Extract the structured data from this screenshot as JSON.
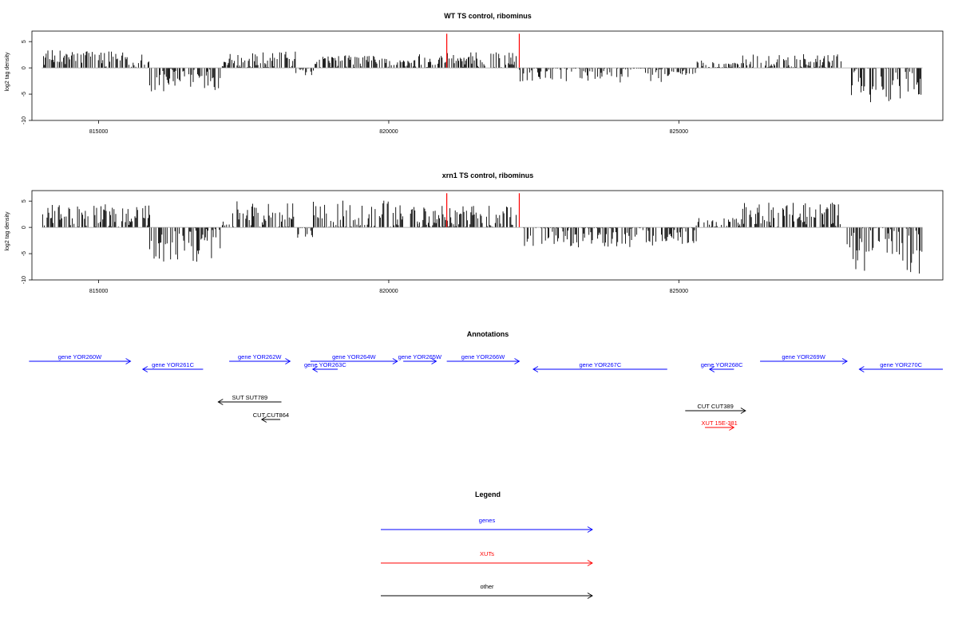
{
  "chart_data": [
    {
      "type": "bar",
      "title": "WT TS control, ribominus",
      "ylabel": "log2 tag density",
      "xlim": [
        813850,
        829550
      ],
      "ylim": [
        -10,
        7
      ],
      "xticks": [
        815000,
        820000,
        825000
      ],
      "yticks": [
        -10,
        -5,
        0,
        5
      ],
      "bar_color": "#000000",
      "highlight_color": "#ff0000",
      "highlights": [
        {
          "x": 821000,
          "y": 6.5
        },
        {
          "x": 822250,
          "y": 6.5
        }
      ],
      "segments": [
        {
          "from": 814020,
          "to": 815880,
          "sign": 1,
          "base": 1.8,
          "amp": 1.6
        },
        {
          "from": 815880,
          "to": 817100,
          "sign": -1,
          "base": 2.2,
          "amp": 2.3
        },
        {
          "from": 817100,
          "to": 817250,
          "sign": 1,
          "base": 0.6,
          "amp": 0.6
        },
        {
          "from": 817250,
          "to": 818400,
          "sign": 1,
          "base": 1.5,
          "amp": 1.6
        },
        {
          "from": 818400,
          "to": 818700,
          "sign": -1,
          "base": 0.6,
          "amp": 0.8
        },
        {
          "from": 818700,
          "to": 820000,
          "sign": 1,
          "base": 1.2,
          "amp": 1.2
        },
        {
          "from": 820000,
          "to": 820500,
          "sign": 1,
          "base": 0.8,
          "amp": 0.8
        },
        {
          "from": 820500,
          "to": 822200,
          "sign": 1,
          "base": 1.5,
          "amp": 1.5
        },
        {
          "from": 822250,
          "to": 824700,
          "sign": -1,
          "base": 1.0,
          "amp": 1.8
        },
        {
          "from": 824700,
          "to": 825300,
          "sign": -1,
          "base": 0.6,
          "amp": 1.0
        },
        {
          "from": 825300,
          "to": 826100,
          "sign": 1,
          "base": 0.5,
          "amp": 1.0
        },
        {
          "from": 826100,
          "to": 827800,
          "sign": 1,
          "base": 1.2,
          "amp": 1.4
        },
        {
          "from": 827900,
          "to": 829200,
          "sign": -1,
          "base": 3.0,
          "amp": 4.2
        }
      ]
    },
    {
      "type": "bar",
      "title": "xrn1 TS control, ribominus",
      "ylabel": "log2 tag density",
      "xlim": [
        813850,
        829550
      ],
      "ylim": [
        -10,
        7
      ],
      "xticks": [
        815000,
        820000,
        825000
      ],
      "yticks": [
        -10,
        -5,
        0,
        5
      ],
      "bar_color": "#000000",
      "highlight_color": "#ff0000",
      "highlights": [
        {
          "x": 821000,
          "y": 6.5
        },
        {
          "x": 822250,
          "y": 6.5
        }
      ],
      "segments": [
        {
          "from": 814020,
          "to": 815880,
          "sign": 1,
          "base": 2.2,
          "amp": 2.2
        },
        {
          "from": 815880,
          "to": 817100,
          "sign": -1,
          "base": 3.2,
          "amp": 3.4
        },
        {
          "from": 817100,
          "to": 817250,
          "sign": 1,
          "base": 0.6,
          "amp": 0.6
        },
        {
          "from": 817250,
          "to": 818400,
          "sign": 1,
          "base": 2.3,
          "amp": 2.8
        },
        {
          "from": 818400,
          "to": 818700,
          "sign": -1,
          "base": 0.8,
          "amp": 1.2
        },
        {
          "from": 818700,
          "to": 820000,
          "sign": 1,
          "base": 2.3,
          "amp": 2.8
        },
        {
          "from": 820000,
          "to": 820500,
          "sign": 1,
          "base": 2.0,
          "amp": 2.3
        },
        {
          "from": 820500,
          "to": 822200,
          "sign": 1,
          "base": 2.0,
          "amp": 2.2
        },
        {
          "from": 822250,
          "to": 824700,
          "sign": -1,
          "base": 1.4,
          "amp": 2.5
        },
        {
          "from": 824700,
          "to": 825300,
          "sign": -1,
          "base": 1.2,
          "amp": 2.0
        },
        {
          "from": 825300,
          "to": 826100,
          "sign": 1,
          "base": 0.6,
          "amp": 1.2
        },
        {
          "from": 826100,
          "to": 827800,
          "sign": 1,
          "base": 2.3,
          "amp": 2.4
        },
        {
          "from": 827900,
          "to": 829200,
          "sign": -1,
          "base": 4.0,
          "amp": 5.0
        }
      ]
    }
  ],
  "annotations": {
    "title": "Annotations",
    "features": [
      {
        "label": "gene YOR260W",
        "from": 813800,
        "to": 815550,
        "dir": "+",
        "kind": "gene",
        "row": 0
      },
      {
        "label": "gene YOR261C",
        "from": 815760,
        "to": 816800,
        "dir": "-",
        "kind": "gene",
        "row": 1
      },
      {
        "label": "gene YOR262W",
        "from": 817250,
        "to": 818300,
        "dir": "+",
        "kind": "gene",
        "row": 0
      },
      {
        "label": "gene YOR263C",
        "from": 818690,
        "to": 819120,
        "dir": "-",
        "kind": "gene",
        "row": 1
      },
      {
        "label": "gene YOR264W",
        "from": 818650,
        "to": 820150,
        "dir": "+",
        "kind": "gene",
        "row": 0
      },
      {
        "label": "gene YOR265W",
        "from": 820250,
        "to": 820820,
        "dir": "+",
        "kind": "gene",
        "row": 0
      },
      {
        "label": "gene YOR266W",
        "from": 821000,
        "to": 822250,
        "dir": "+",
        "kind": "gene",
        "row": 0
      },
      {
        "label": "gene YOR267C",
        "from": 822490,
        "to": 824800,
        "dir": "-",
        "kind": "gene",
        "row": 1
      },
      {
        "label": "gene YOR268C",
        "from": 825530,
        "to": 825950,
        "dir": "-",
        "kind": "gene",
        "row": 1
      },
      {
        "label": "gene YOR269W",
        "from": 826400,
        "to": 827900,
        "dir": "+",
        "kind": "gene",
        "row": 0
      },
      {
        "label": "gene YOR270C",
        "from": 828110,
        "to": 829550,
        "dir": "-",
        "kind": "gene",
        "row": 1
      },
      {
        "label": "SUT SUT789",
        "from": 817060,
        "to": 818150,
        "dir": "-",
        "kind": "other",
        "row": 3
      },
      {
        "label": "CUT CUT864",
        "from": 817810,
        "to": 818130,
        "dir": "-",
        "kind": "other",
        "row": 5
      },
      {
        "label": "CUT CUT389",
        "from": 825110,
        "to": 826150,
        "dir": "+",
        "kind": "other",
        "row": 4
      },
      {
        "label": "XUT 15E-381",
        "from": 825450,
        "to": 825950,
        "dir": "+",
        "kind": "xut",
        "row": 6
      }
    ]
  },
  "legend": {
    "title": "Legend",
    "items": [
      {
        "label": "genes",
        "color": "#0000ff"
      },
      {
        "label": "XUTs",
        "color": "#ff0000"
      },
      {
        "label": "other",
        "color": "#000000"
      }
    ]
  },
  "colors": {
    "gene": "#0000ff",
    "xut": "#ff0000",
    "other": "#000000",
    "zero_line": "#a0a0a0"
  }
}
